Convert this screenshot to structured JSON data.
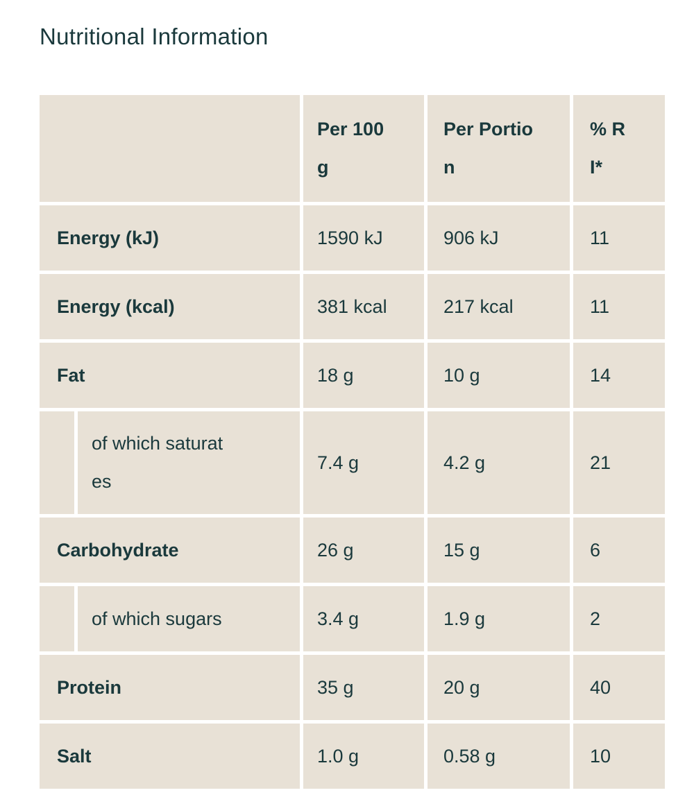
{
  "page": {
    "title": "Nutritional Information"
  },
  "colors": {
    "text_teal": "#1a393c",
    "cell_beige": "#e8e1d6",
    "page_background": "#ffffff"
  },
  "table": {
    "header": {
      "blank": "",
      "per_100g": "Per 100\ng",
      "per_portion": "Per Portio\nn",
      "pct_ri": "% R\nI*"
    },
    "rows": [
      {
        "label": "Energy (kJ)",
        "indented": false,
        "per_100g": "1590 kJ",
        "per_portion": "906 kJ",
        "pct_ri": "11"
      },
      {
        "label": "Energy (kcal)",
        "indented": false,
        "per_100g": "381 kcal",
        "per_portion": "217 kcal",
        "pct_ri": "11"
      },
      {
        "label": "Fat",
        "indented": false,
        "per_100g": "18 g",
        "per_portion": "10 g",
        "pct_ri": "14"
      },
      {
        "label": "of which saturat\nes",
        "indented": true,
        "per_100g": "7.4 g",
        "per_portion": "4.2 g",
        "pct_ri": "21"
      },
      {
        "label": "Carbohydrate",
        "indented": false,
        "per_100g": "26 g",
        "per_portion": "15 g",
        "pct_ri": "6"
      },
      {
        "label": "of which sugars",
        "indented": true,
        "per_100g": "3.4 g",
        "per_portion": "1.9 g",
        "pct_ri": "2"
      },
      {
        "label": "Protein",
        "indented": false,
        "per_100g": "35 g",
        "per_portion": "20 g",
        "pct_ri": "40"
      },
      {
        "label": "Salt",
        "indented": false,
        "per_100g": "1.0 g",
        "per_portion": "0.58 g",
        "pct_ri": "10"
      }
    ]
  }
}
